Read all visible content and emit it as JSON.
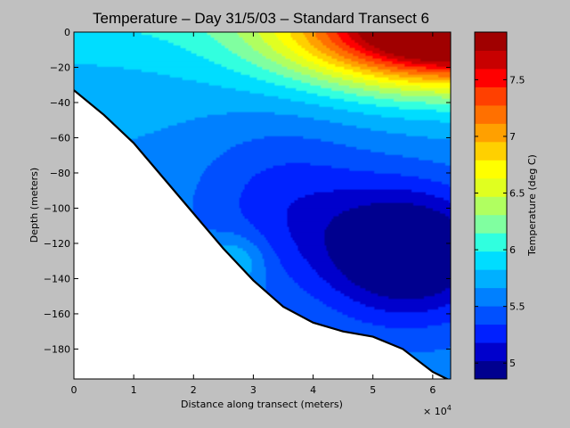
{
  "chart_data": {
    "type": "heatmap",
    "title": "Temperature – Day 31/5/03 – Standard Transect 6",
    "xlabel": "Distance along transect (meters)",
    "ylabel": "Depth (meters)",
    "x_multiplier": "× 10",
    "x_multiplier_exp": "4",
    "xlim": [
      0,
      6.3
    ],
    "ylim": [
      -197,
      0
    ],
    "x_ticks": [
      "0",
      "1",
      "2",
      "3",
      "4",
      "5",
      "6"
    ],
    "y_ticks": [
      "0",
      "−20",
      "−40",
      "−60",
      "−80",
      "−100",
      "−120",
      "−140",
      "−160",
      "−180"
    ],
    "colorbar": {
      "label": "Temperature (deg C)",
      "range": [
        4.86,
        7.92
      ],
      "ticks": [
        "5",
        "5.5",
        "6",
        "6.5",
        "7",
        "7.5"
      ],
      "levels": [
        "#00008f",
        "#0000cc",
        "#0020ff",
        "#0050ff",
        "#0080ff",
        "#00b0ff",
        "#00ddff",
        "#30ffdf",
        "#80ffa0",
        "#b0ff60",
        "#e0ff20",
        "#ffff00",
        "#ffd000",
        "#ffa000",
        "#ff7000",
        "#ff4000",
        "#ff0000",
        "#c80000",
        "#a00000"
      ]
    },
    "bathymetry": {
      "x": [
        0,
        0.5,
        1.0,
        1.5,
        2.0,
        2.5,
        3.0,
        3.5,
        4.0,
        4.5,
        5.0,
        5.5,
        6.0,
        6.3
      ],
      "depth": [
        -33,
        -47,
        -63,
        -83,
        -103,
        -123,
        -141,
        -156,
        -165,
        -170,
        -173,
        -180,
        -193,
        -198
      ]
    }
  }
}
